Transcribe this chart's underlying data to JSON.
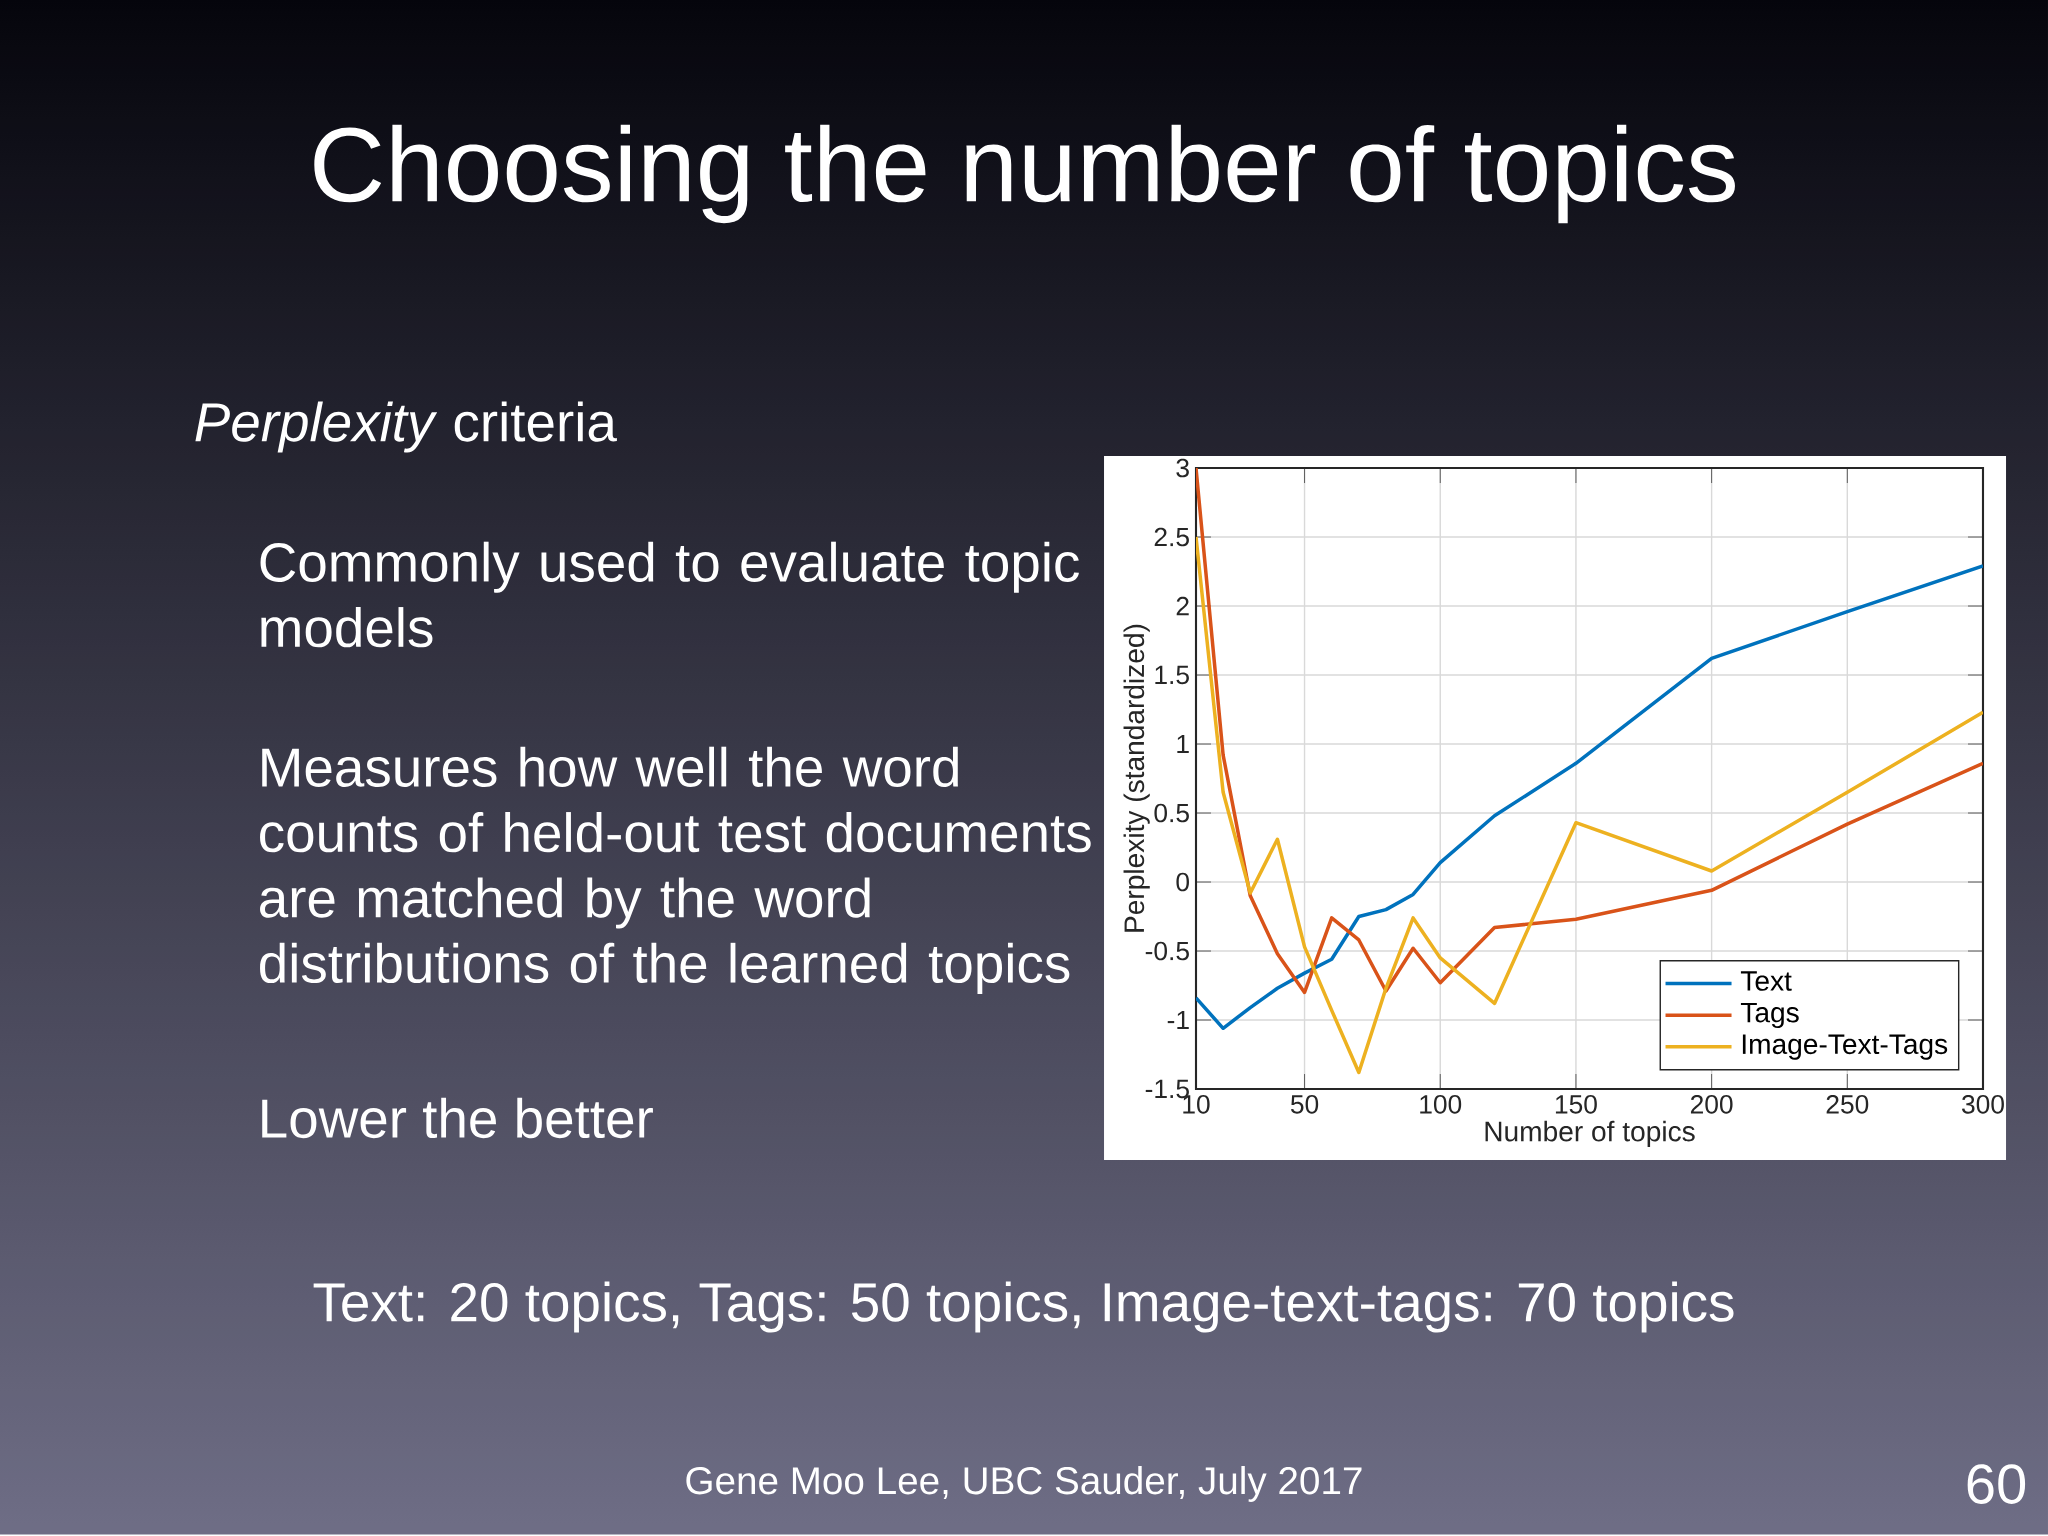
{
  "chart_data": {
    "type": "line",
    "title": "Choosing the number of topics",
    "xlabel": "Number of topics",
    "ylabel": "Perplexity (standardized)",
    "x": [
      10,
      20,
      30,
      40,
      50,
      60,
      70,
      80,
      90,
      100,
      120,
      150,
      200,
      250,
      300
    ],
    "series": [
      {
        "name": "Text",
        "color": "#0072bd",
        "values": [
          -0.84,
          -1.06,
          -0.91,
          -0.77,
          -0.66,
          -0.56,
          -0.25,
          -0.2,
          -0.09,
          0.14,
          0.48,
          0.86,
          1.62,
          1.96,
          2.29
        ]
      },
      {
        "name": "Tags",
        "color": "#d95319",
        "values": [
          3.0,
          0.92,
          -0.1,
          -0.52,
          -0.8,
          -0.26,
          -0.42,
          -0.79,
          -0.48,
          -0.73,
          -0.33,
          -0.27,
          -0.06,
          0.42,
          0.86
        ]
      },
      {
        "name": "Image-Text-Tags",
        "color": "#edb120",
        "values": [
          2.5,
          0.65,
          -0.08,
          0.31,
          -0.47,
          -0.93,
          -1.38,
          -0.77,
          -0.26,
          -0.55,
          -0.88,
          0.43,
          0.08,
          0.65,
          1.23
        ]
      }
    ],
    "xlim": [
      10,
      300
    ],
    "ylim": [
      -1.5,
      3
    ],
    "xticks": [
      10,
      50,
      100,
      150,
      200,
      250,
      300
    ],
    "yticks": [
      -1.5,
      -1,
      -0.5,
      0,
      0.5,
      1,
      1.5,
      2,
      2.5,
      3
    ],
    "grid": true,
    "legend": "bottom right",
    "annotations": [
      "*Perplexity* criteria",
      "Commonly used to evaluate topic models",
      "Measures how well the word counts of held-out test documents are matched by the word distributions of the learned topics",
      "Lower the better",
      "Text: 20 topics, Tags: 50 topics, Image-text-tags: 70 topics",
      "Gene Moo Lee, UBC Sauder, July 2017",
      "60"
    ]
  }
}
